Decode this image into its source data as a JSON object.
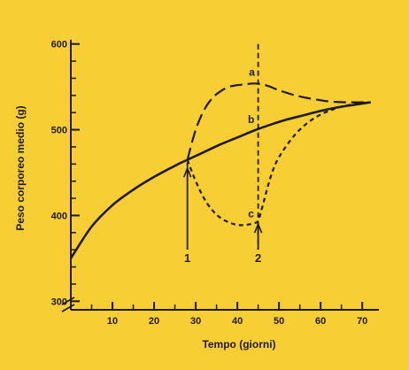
{
  "chart_data": {
    "type": "line",
    "xlabel": "Tempo (giorni)",
    "ylabel": "Peso corporeo medio (g)",
    "xlim": [
      0,
      74
    ],
    "ylim": [
      290,
      610
    ],
    "x_ticks": [
      10,
      20,
      30,
      40,
      50,
      60,
      70
    ],
    "y_ticks": [
      300,
      400,
      500,
      600
    ],
    "y_tick_labels": [
      "300",
      "400",
      "500",
      "600"
    ],
    "x_tick_labels": [
      "10",
      "20",
      "30",
      "40",
      "50",
      "60",
      "70"
    ],
    "y_axis_break": true,
    "colors": {
      "background": "#F7CE34",
      "ink": "#1f1a14"
    },
    "series": [
      {
        "style": "solid",
        "x": [
          0,
          5,
          10,
          15,
          20,
          25,
          28,
          32,
          36,
          40,
          44,
          48,
          52,
          56,
          60,
          64,
          68,
          72
        ],
        "y": [
          350,
          387,
          412,
          430,
          445,
          458,
          465,
          474,
          483,
          491,
          499,
          506,
          512,
          517,
          522,
          526,
          529,
          532
        ]
      },
      {
        "style": "long-dash",
        "x": [
          28,
          30,
          32,
          34,
          36,
          38,
          40,
          42,
          44,
          46,
          48,
          50,
          54,
          58,
          62,
          66,
          70,
          72
        ],
        "y": [
          465,
          500,
          523,
          537,
          545,
          550,
          552,
          553,
          554,
          553,
          550,
          546,
          540,
          536,
          533,
          532,
          532,
          532
        ]
      },
      {
        "style": "short-dash",
        "x": [
          28,
          30,
          32,
          34,
          36,
          38,
          40,
          42,
          44,
          45,
          46,
          48,
          50,
          54,
          58,
          62,
          66,
          70,
          72
        ],
        "y": [
          465,
          440,
          420,
          406,
          397,
          392,
          389,
          389,
          391,
          394,
          410,
          445,
          468,
          495,
          512,
          522,
          528,
          531,
          532
        ]
      }
    ],
    "point_labels": [
      {
        "text": "a",
        "x": 43.5,
        "y": 563
      },
      {
        "text": "b",
        "x": 43.3,
        "y": 508
      },
      {
        "text": "c",
        "x": 43.3,
        "y": 398
      }
    ],
    "vertical_markers": [
      {
        "label": "1",
        "x": 28,
        "style": "solid"
      },
      {
        "label": "2",
        "x": 45,
        "style": "dashed"
      }
    ]
  }
}
